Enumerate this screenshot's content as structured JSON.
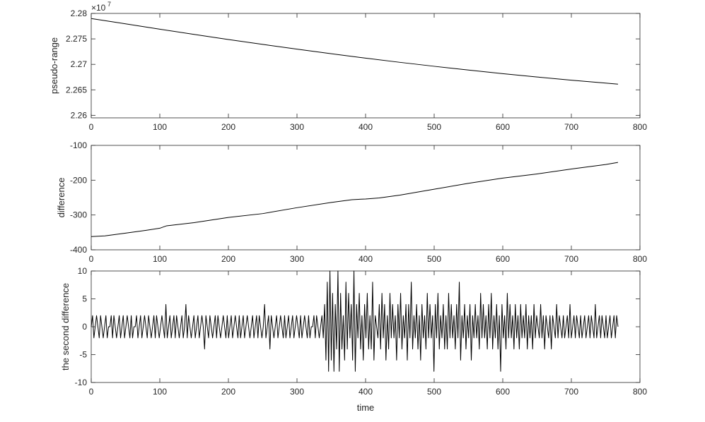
{
  "chart_data": [
    {
      "type": "line",
      "ylabel": "pseudo-range",
      "xlabel": "",
      "exponent_label": {
        "base": "×10",
        "power": "7"
      },
      "xlim": [
        0,
        800
      ],
      "ylim": [
        2.2595,
        2.28
      ],
      "x_ticks": [
        "0",
        "100",
        "200",
        "300",
        "400",
        "500",
        "600",
        "700",
        "800"
      ],
      "y_ticks": [
        "2.28",
        "2.275",
        "2.27",
        "2.265",
        "2.26"
      ],
      "y_tick_values": [
        2.28,
        2.275,
        2.27,
        2.265,
        2.26
      ],
      "series": [
        {
          "color": "#000000",
          "x": [
            0,
            50,
            100,
            150,
            200,
            250,
            300,
            350,
            400,
            450,
            500,
            550,
            600,
            650,
            700,
            750,
            768
          ],
          "values": [
            2.279,
            2.27795,
            2.2769,
            2.27588,
            2.27488,
            2.27392,
            2.27298,
            2.27208,
            2.27122,
            2.2704,
            2.26962,
            2.26888,
            2.26818,
            2.26752,
            2.2669,
            2.26632,
            2.26612
          ]
        }
      ]
    },
    {
      "type": "line",
      "ylabel": "difference",
      "xlabel": "",
      "xlim": [
        0,
        800
      ],
      "ylim": [
        -400,
        -100
      ],
      "x_ticks": [
        "0",
        "100",
        "200",
        "300",
        "400",
        "500",
        "600",
        "700",
        "800"
      ],
      "y_ticks": [
        "-100",
        "-200",
        "-300",
        "-400"
      ],
      "y_tick_values": [
        -100,
        -200,
        -300,
        -400
      ],
      "series": [
        {
          "color": "#000000",
          "x": [
            0,
            20,
            50,
            80,
            100,
            110,
            150,
            200,
            250,
            300,
            350,
            380,
            400,
            420,
            450,
            500,
            550,
            600,
            650,
            700,
            750,
            768
          ],
          "values": [
            -362,
            -360,
            -352,
            -344,
            -338,
            -331,
            -322,
            -307,
            -296,
            -279,
            -264,
            -256,
            -254,
            -251,
            -243,
            -226,
            -209,
            -194,
            -182,
            -168,
            -155,
            -149
          ]
        }
      ]
    },
    {
      "type": "line",
      "ylabel": "the second difference",
      "xlabel": "time",
      "xlim": [
        0,
        800
      ],
      "ylim": [
        -10,
        10
      ],
      "x_ticks": [
        "0",
        "100",
        "200",
        "300",
        "400",
        "500",
        "600",
        "700",
        "800"
      ],
      "y_ticks": [
        "10",
        "5",
        "0",
        "-5",
        "-10"
      ],
      "y_tick_values": [
        10,
        5,
        0,
        -5,
        -10
      ],
      "series": [
        {
          "color": "#000000",
          "x_start": 0,
          "x_end": 768,
          "values": [
            0,
            2,
            -2,
            0,
            2,
            0,
            -2,
            2,
            0,
            -2,
            0,
            2,
            -2,
            0,
            0,
            2,
            -2,
            2,
            0,
            -2,
            0,
            2,
            -2,
            0,
            2,
            -2,
            0,
            2,
            0,
            -2,
            2,
            -2,
            0,
            0,
            2,
            -2,
            0,
            2,
            -2,
            0,
            2,
            0,
            -2,
            2,
            0,
            -2,
            0,
            2,
            -2,
            2,
            0,
            -2,
            0,
            2,
            0,
            -2,
            4,
            -2,
            0,
            2,
            -2,
            0,
            2,
            -2,
            2,
            0,
            -2,
            0,
            2,
            -2,
            0,
            4,
            -2,
            2,
            0,
            -2,
            0,
            2,
            -2,
            0,
            2,
            -2,
            0,
            2,
            0,
            -4,
            2,
            0,
            -2,
            2,
            0,
            -2,
            0,
            2,
            -2,
            2,
            0,
            -2,
            0,
            2,
            0,
            -2,
            2,
            -2,
            0,
            2,
            -2,
            0,
            2,
            0,
            -2,
            2,
            -2,
            0,
            2,
            -2,
            0,
            2,
            0,
            -2,
            0,
            2,
            -2,
            0,
            2,
            -2,
            2,
            0,
            -2,
            0,
            4,
            -2,
            0,
            2,
            -4,
            2,
            0,
            -2,
            0,
            2,
            -2,
            0,
            2,
            0,
            -2,
            2,
            -2,
            0,
            2,
            -2,
            0,
            2,
            -2,
            0,
            2,
            0,
            -2,
            2,
            -2,
            0,
            2,
            0,
            -2,
            2,
            -2,
            0,
            0,
            2,
            -2,
            2,
            0,
            -2,
            0,
            2,
            -2,
            4,
            -6,
            8,
            -8,
            10,
            -6,
            6,
            -8,
            4,
            -4,
            10,
            -8,
            6,
            -4,
            2,
            -6,
            8,
            -4,
            6,
            -2,
            4,
            -6,
            10,
            -8,
            4,
            -2,
            6,
            -4,
            2,
            -6,
            4,
            -2,
            6,
            -4,
            2,
            -4,
            8,
            -6,
            2,
            0,
            -2,
            4,
            -4,
            6,
            -2,
            4,
            -6,
            2,
            -4,
            6,
            -2,
            4,
            -2,
            2,
            -6,
            4,
            -2,
            6,
            -4,
            2,
            -2,
            4,
            -6,
            4,
            -2,
            8,
            -4,
            2,
            -2,
            4,
            -4,
            2,
            -6,
            4,
            -2,
            2,
            -4,
            6,
            -2,
            4,
            -2,
            2,
            -8,
            4,
            -2,
            6,
            -4,
            2,
            -2,
            4,
            -4,
            2,
            -4,
            6,
            -2,
            4,
            -2,
            2,
            -4,
            4,
            -2,
            8,
            -6,
            2,
            -2,
            4,
            -4,
            2,
            -2,
            4,
            -6,
            2,
            -2,
            4,
            -2,
            2,
            -4,
            6,
            -2,
            4,
            -2,
            2,
            -4,
            4,
            -2,
            6,
            -4,
            2,
            -2,
            4,
            -4,
            2,
            -8,
            4,
            -2,
            2,
            -4,
            6,
            -2,
            4,
            -2,
            2,
            -4,
            4,
            -2,
            2,
            -4,
            4,
            -2,
            2,
            -2,
            4,
            -4,
            2,
            -2,
            2,
            -4,
            4,
            -2,
            2,
            0,
            -2,
            4,
            -2,
            2,
            -4,
            2,
            0,
            -2,
            2,
            -4,
            2,
            0,
            -2,
            4,
            -2,
            2,
            0,
            -2,
            2,
            -2,
            0,
            2,
            -2,
            4,
            -2,
            0,
            2,
            -2,
            2,
            0,
            -2,
            2,
            -2,
            0,
            2,
            -2,
            0,
            2,
            -2,
            2,
            0,
            -2,
            4,
            -2,
            0,
            2,
            -2,
            2,
            0,
            -2,
            2,
            -2,
            0,
            2,
            -2,
            0,
            2,
            -2,
            2,
            0
          ]
        }
      ]
    }
  ]
}
